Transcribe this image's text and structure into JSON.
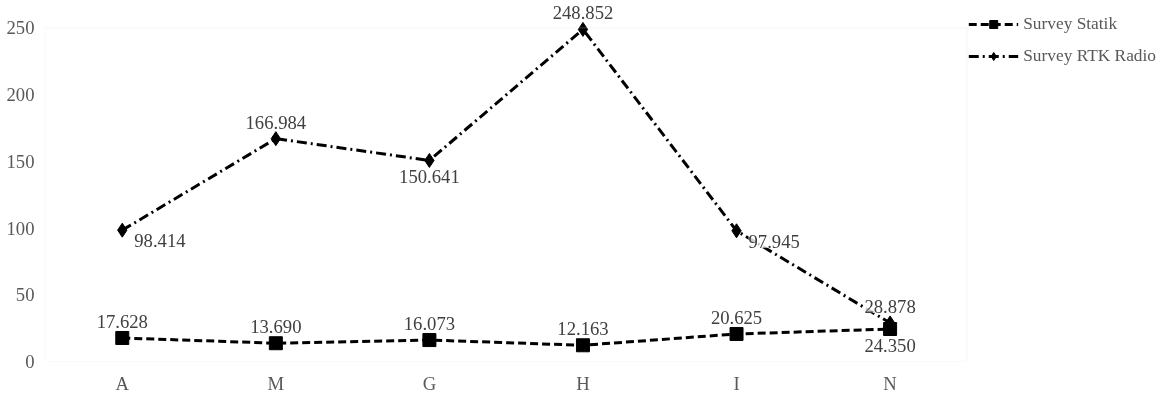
{
  "chart_data": {
    "type": "line",
    "categories": [
      "A",
      "M",
      "G",
      "H",
      "I",
      "N"
    ],
    "series": [
      {
        "name": "Survey Statik",
        "color": "#000000",
        "values": [
          17.628,
          13.69,
          16.073,
          12.163,
          20.625,
          24.35
        ],
        "value_labels": [
          "17.628",
          "13.690",
          "16.073",
          "12.163",
          "20.625",
          "24.350"
        ],
        "marker": "square",
        "line_style": "dashed"
      },
      {
        "name": "Survey RTK Radio",
        "color": "#000000",
        "values": [
          98.414,
          166.984,
          150.641,
          248.852,
          97.945,
          28.878
        ],
        "value_labels": [
          "98.414",
          "166.984",
          "150.641",
          "248.852",
          "97.945",
          "28.878"
        ],
        "marker": "diamond",
        "line_style": "dashdot"
      }
    ],
    "ylim": [
      0,
      250
    ],
    "yticks": [
      0,
      50,
      100,
      150,
      200,
      250
    ],
    "legend": "right",
    "grid": false
  }
}
